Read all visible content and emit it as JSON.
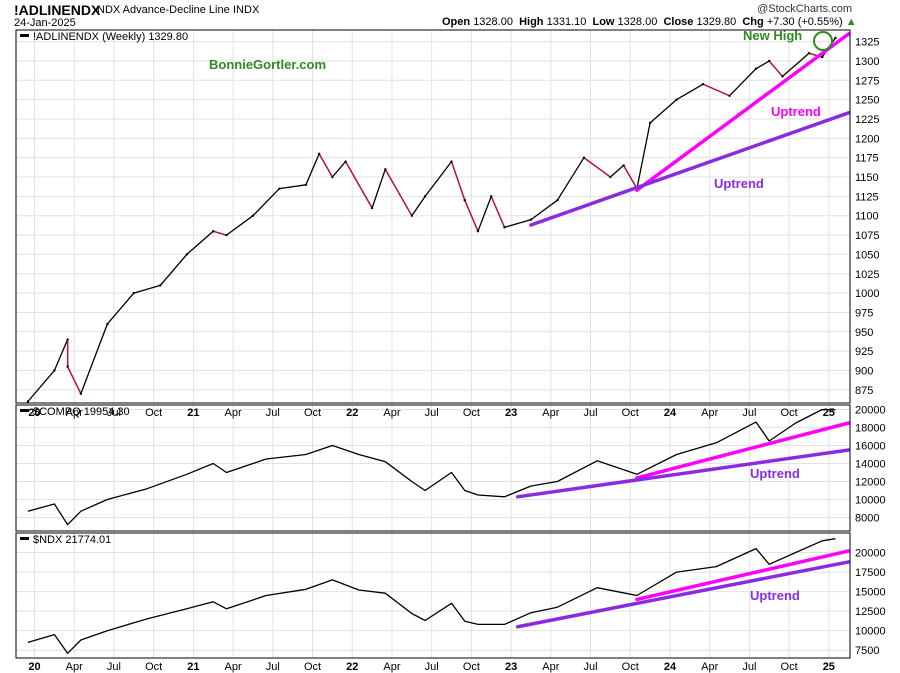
{
  "header": {
    "symbol": "!ADLINENDX",
    "description": "NDX Advance-Decline Line",
    "exchange": "INDX",
    "date": "24-Jan-2025",
    "watermark": "@StockCharts.com",
    "quote": {
      "open_label": "Open",
      "open": "1328.00",
      "high_label": "High",
      "high": "1331.10",
      "low_label": "Low",
      "low": "1328.00",
      "close_label": "Close",
      "close": "1329.80",
      "chg_label": "Chg",
      "chg": "+7.30 (+0.55%)"
    }
  },
  "colors": {
    "line": "#000000",
    "down_line": "#c8102e",
    "magenta_trend": "#ff00ff",
    "purple_trend": "#8a2be2",
    "green_annotation": "#2e8b22",
    "grid": "#e2e2e2"
  },
  "time_axis": {
    "tick_labels": [
      "20",
      "Apr",
      "Jul",
      "Oct",
      "21",
      "Apr",
      "Jul",
      "Oct",
      "22",
      "Apr",
      "Jul",
      "Oct",
      "23",
      "Apr",
      "Jul",
      "Oct",
      "24",
      "Apr",
      "Jul",
      "Oct",
      "25"
    ],
    "bold_labels": [
      "20",
      "21",
      "22",
      "23",
      "24",
      "25"
    ]
  },
  "chart_data": [
    {
      "type": "line",
      "panel": "main",
      "legend": "!ADLINENDX (Weekly) 1329.80",
      "y_ticks": [
        875,
        900,
        925,
        950,
        975,
        1000,
        1025,
        1050,
        1075,
        1100,
        1125,
        1150,
        1175,
        1200,
        1225,
        1250,
        1275,
        1300,
        1325
      ],
      "ylim": [
        858,
        1340
      ],
      "series": [
        {
          "x": [
            "2019-12",
            "2020-02",
            "2020-03",
            "2020-03",
            "2020-04",
            "2020-06",
            "2020-08",
            "2020-10",
            "2020-12",
            "2021-02",
            "2021-03",
            "2021-05",
            "2021-07",
            "2021-09",
            "2021-10",
            "2021-11",
            "2021-12",
            "2022-02",
            "2022-03",
            "2022-05",
            "2022-06",
            "2022-08",
            "2022-09",
            "2022-10",
            "2022-11",
            "2022-12",
            "2023-02",
            "2023-04",
            "2023-06",
            "2023-08",
            "2023-09",
            "2023-10",
            "2023-11",
            "2024-01",
            "2024-03",
            "2024-05",
            "2024-07",
            "2024-08",
            "2024-09",
            "2024-11",
            "2024-12",
            "2025-01"
          ],
          "y": [
            860,
            900,
            940,
            905,
            870,
            960,
            1000,
            1010,
            1050,
            1080,
            1075,
            1100,
            1135,
            1140,
            1180,
            1150,
            1170,
            1110,
            1160,
            1100,
            1125,
            1170,
            1120,
            1080,
            1125,
            1085,
            1095,
            1120,
            1175,
            1150,
            1165,
            1135,
            1220,
            1250,
            1270,
            1255,
            1290,
            1300,
            1280,
            1310,
            1305,
            1329.8
          ]
        }
      ],
      "trendlines": [
        {
          "name": "Uptrend",
          "color": "magenta",
          "from": [
            "2023-10",
            1133
          ],
          "to": [
            "2025-02",
            1335
          ]
        },
        {
          "name": "Uptrend",
          "color": "purple",
          "from": [
            "2023-02",
            1088
          ],
          "to": [
            "2025-02",
            1233
          ]
        }
      ],
      "annotations": [
        {
          "text": "BonnieGortler.com",
          "color": "green"
        },
        {
          "text": "New High",
          "color": "green"
        },
        {
          "text": "Uptrend",
          "color": "magenta"
        },
        {
          "text": "Uptrend",
          "color": "purple"
        }
      ]
    },
    {
      "type": "line",
      "panel": "compq",
      "legend": "$COMPQ 19954.30",
      "y_ticks": [
        8000,
        10000,
        12000,
        14000,
        16000,
        18000,
        20000
      ],
      "ylim": [
        6500,
        20500
      ],
      "series": [
        {
          "x": [
            "2019-12",
            "2020-02",
            "2020-03",
            "2020-04",
            "2020-06",
            "2020-09",
            "2020-12",
            "2021-02",
            "2021-03",
            "2021-06",
            "2021-09",
            "2021-11",
            "2022-01",
            "2022-03",
            "2022-05",
            "2022-06",
            "2022-08",
            "2022-09",
            "2022-10",
            "2022-12",
            "2023-02",
            "2023-04",
            "2023-07",
            "2023-10",
            "2024-01",
            "2024-04",
            "2024-07",
            "2024-08",
            "2024-10",
            "2024-12",
            "2025-01"
          ],
          "y": [
            8700,
            9500,
            7200,
            8700,
            10000,
            11200,
            12800,
            14000,
            13000,
            14500,
            15000,
            16000,
            15000,
            14200,
            12000,
            11000,
            13000,
            11000,
            10500,
            10300,
            11500,
            12000,
            14300,
            12800,
            15000,
            16300,
            18600,
            16500,
            18500,
            20000,
            19954.3
          ]
        }
      ],
      "trendlines": [
        {
          "name": "Uptrend",
          "color": "magenta",
          "from": [
            "2023-10",
            12400
          ],
          "to": [
            "2025-02",
            18500
          ]
        },
        {
          "name": "Uptrend",
          "color": "purple",
          "from": [
            "2023-01",
            10300
          ],
          "to": [
            "2025-02",
            15500
          ]
        }
      ],
      "annotations": [
        {
          "text": "Uptrend",
          "color": "purple"
        }
      ]
    },
    {
      "type": "line",
      "panel": "ndx",
      "legend": "$NDX 21774.01",
      "y_ticks": [
        7500,
        10000,
        12500,
        15000,
        17500,
        20000
      ],
      "ylim": [
        6500,
        22500
      ],
      "series": [
        {
          "x": [
            "2019-12",
            "2020-02",
            "2020-03",
            "2020-04",
            "2020-06",
            "2020-09",
            "2020-12",
            "2021-02",
            "2021-03",
            "2021-06",
            "2021-09",
            "2021-11",
            "2022-01",
            "2022-03",
            "2022-05",
            "2022-06",
            "2022-08",
            "2022-09",
            "2022-10",
            "2022-12",
            "2023-02",
            "2023-04",
            "2023-07",
            "2023-10",
            "2024-01",
            "2024-04",
            "2024-07",
            "2024-08",
            "2024-10",
            "2024-12",
            "2025-01"
          ],
          "y": [
            8500,
            9500,
            7100,
            8800,
            10000,
            11500,
            12800,
            13700,
            12800,
            14500,
            15300,
            16500,
            15200,
            14800,
            12200,
            11300,
            13500,
            11200,
            10800,
            10800,
            12300,
            13000,
            15500,
            14500,
            17500,
            18200,
            20500,
            18500,
            20000,
            21500,
            21774.01
          ]
        }
      ],
      "trendlines": [
        {
          "name": "Uptrend",
          "color": "magenta",
          "from": [
            "2023-10",
            14000
          ],
          "to": [
            "2025-02",
            20200
          ]
        },
        {
          "name": "Uptrend",
          "color": "purple",
          "from": [
            "2023-01",
            10500
          ],
          "to": [
            "2025-02",
            18800
          ]
        }
      ],
      "annotations": [
        {
          "text": "Uptrend",
          "color": "purple"
        }
      ]
    }
  ]
}
